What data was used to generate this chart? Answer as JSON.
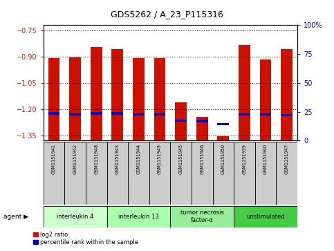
{
  "title": "GDS5262 / A_23_P115316",
  "samples": [
    "GSM1151941",
    "GSM1151942",
    "GSM1151948",
    "GSM1151943",
    "GSM1151944",
    "GSM1151949",
    "GSM1151945",
    "GSM1151946",
    "GSM1151950",
    "GSM1151939",
    "GSM1151940",
    "GSM1151947"
  ],
  "log2_values": [
    -0.91,
    -0.905,
    -0.845,
    -0.857,
    -0.907,
    -0.907,
    -1.16,
    -1.245,
    -1.355,
    -0.835,
    -0.915,
    -0.857
  ],
  "percentile_values": [
    -1.225,
    -1.23,
    -1.225,
    -1.225,
    -1.232,
    -1.232,
    -1.265,
    -1.268,
    -1.285,
    -1.232,
    -1.232,
    -1.235
  ],
  "ymin": -1.38,
  "ymax": -0.72,
  "yticks": [
    -0.75,
    -0.9,
    -1.05,
    -1.2,
    -1.35
  ],
  "right_ytick_percents": [
    100,
    75,
    50,
    25,
    0
  ],
  "agents": [
    {
      "label": "interleukin 4",
      "start": 0,
      "end": 3,
      "color": "#ccffcc"
    },
    {
      "label": "interleukin 13",
      "start": 3,
      "end": 6,
      "color": "#aaffaa"
    },
    {
      "label": "tumor necrosis\nfactor-α",
      "start": 6,
      "end": 9,
      "color": "#99ee99"
    },
    {
      "label": "unstimulated",
      "start": 9,
      "end": 12,
      "color": "#44cc44"
    }
  ],
  "bar_color": "#cc1100",
  "percentile_color": "#0000cc",
  "bar_width": 0.55,
  "tick_color_left": "#cc1100",
  "tick_color_right": "#0000bb",
  "sample_box_color": "#cccccc",
  "legend_red_label": "log2 ratio",
  "legend_blue_label": "percentile rank within the sample",
  "agent_label_text": "agent ▶"
}
